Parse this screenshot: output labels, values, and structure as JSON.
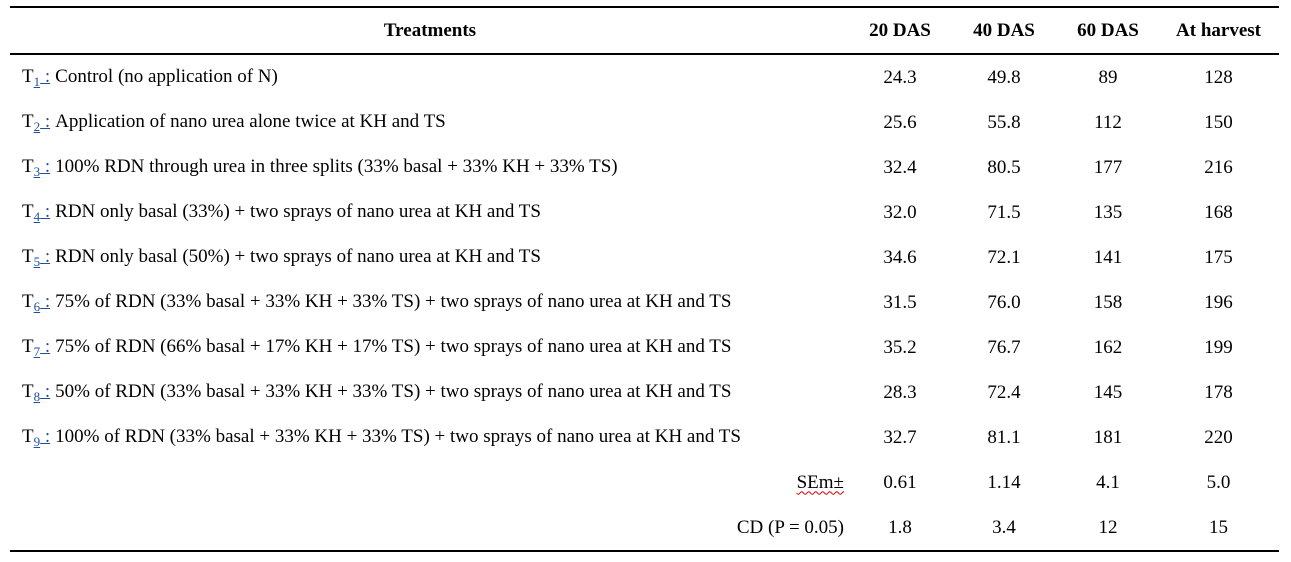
{
  "table": {
    "headers": [
      "Treatments",
      "20 DAS",
      "40 DAS",
      "60 DAS",
      "At harvest"
    ],
    "rows": [
      {
        "code_letter": "T",
        "code_sub": "1",
        "colon": " :",
        "treatment": "Control (no application of N)",
        "values": [
          "24.3",
          "49.8",
          "89",
          "128"
        ]
      },
      {
        "code_letter": "T",
        "code_sub": "2",
        "colon": " :",
        "treatment": "Application of nano urea alone twice at KH and TS",
        "values": [
          "25.6",
          "55.8",
          "112",
          "150"
        ]
      },
      {
        "code_letter": "T",
        "code_sub": "3",
        "colon": " :",
        "treatment": "100% RDN through urea in three splits (33% basal + 33% KH + 33% TS)",
        "values": [
          "32.4",
          "80.5",
          "177",
          "216"
        ]
      },
      {
        "code_letter": "T",
        "code_sub": "4",
        "colon": " :",
        "treatment": "RDN only basal (33%) + two sprays of nano urea at KH and TS",
        "values": [
          "32.0",
          "71.5",
          "135",
          "168"
        ]
      },
      {
        "code_letter": "T",
        "code_sub": "5",
        "colon": " :",
        "treatment": "RDN only basal (50%) + two sprays of nano urea at KH and TS",
        "values": [
          "34.6",
          "72.1",
          "141",
          "175"
        ]
      },
      {
        "code_letter": "T",
        "code_sub": "6",
        "colon": " :",
        "treatment": "75% of RDN (33% basal + 33% KH + 33% TS) + two sprays of nano urea at KH and TS",
        "values": [
          "31.5",
          "76.0",
          "158",
          "196"
        ]
      },
      {
        "code_letter": "T",
        "code_sub": "7",
        "colon": " :",
        "treatment": "75% of RDN (66% basal + 17% KH + 17% TS) + two sprays of nano urea at KH and TS",
        "values": [
          "35.2",
          "76.7",
          "162",
          "199"
        ]
      },
      {
        "code_letter": "T",
        "code_sub": "8",
        "colon": " :",
        "treatment": "50% of RDN (33% basal + 33% KH + 33% TS) + two sprays of nano urea at KH and TS",
        "values": [
          "28.3",
          "72.4",
          "145",
          "178"
        ]
      },
      {
        "code_letter": "T",
        "code_sub": "9",
        "colon": " :",
        "treatment": "100% of RDN (33% basal + 33% KH + 33% TS) + two sprays of nano urea at KH and TS",
        "values": [
          "32.7",
          "81.1",
          "181",
          "220"
        ]
      }
    ],
    "stats": [
      {
        "label": "SEm±",
        "values": [
          "0.61",
          "1.14",
          "4.1",
          "5.0"
        ]
      },
      {
        "label": "CD (P = 0.05)",
        "values": [
          "1.8",
          "3.4",
          "12",
          "15"
        ]
      }
    ]
  },
  "colors": {
    "text": "#000000",
    "subscript_link": "#1f4e9a",
    "spellcheck_underline": "#d00000"
  }
}
